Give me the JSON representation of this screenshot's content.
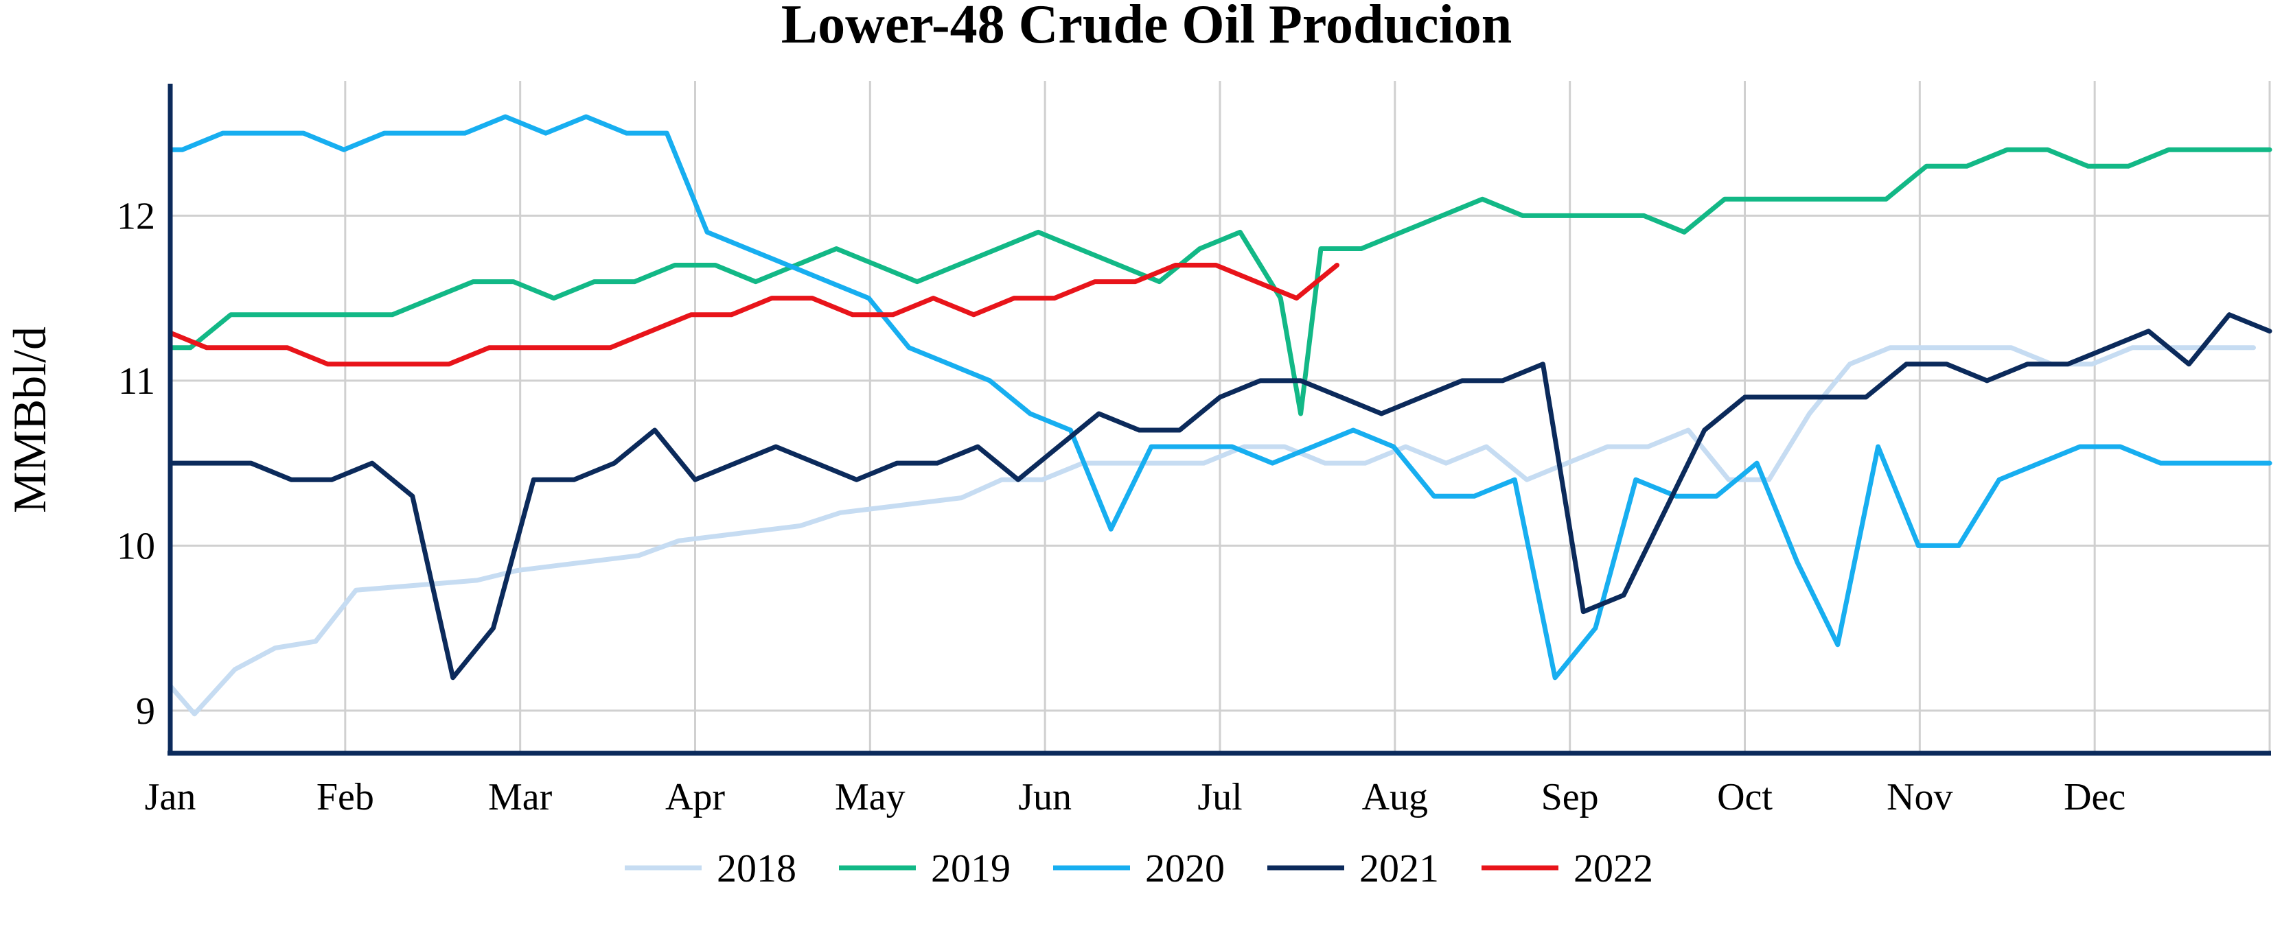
{
  "chart_data": {
    "type": "line",
    "title": "Lower-48 Crude Oil Producion",
    "ylabel": "MMBbl/d",
    "xlabel": "",
    "x_ticks": [
      "Jan",
      "Feb",
      "Mar",
      "Apr",
      "May",
      "Jun",
      "Jul",
      "Aug",
      "Sep",
      "Oct",
      "Nov",
      "Dec"
    ],
    "y_ticks": [
      9,
      10,
      11,
      12
    ],
    "xlim": [
      1,
      53
    ],
    "ylim": [
      8.75,
      12.8
    ],
    "grid": true,
    "legend_position": "bottom",
    "series": [
      {
        "name": "2018",
        "color": "#c6dcf2",
        "x": [
          1,
          1.6,
          2.6,
          3.6,
          4.6,
          5.6,
          6.6,
          7.6,
          8.6,
          9.6,
          10.6,
          11.6,
          12.6,
          13.6,
          14.6,
          15.6,
          16.6,
          17.6,
          18.6,
          19.6,
          20.6,
          21.6,
          22.6,
          23.6,
          24.6,
          25.6,
          26.6,
          27.6,
          28.6,
          29.6,
          30.6,
          31.6,
          32.6,
          33.6,
          34.6,
          35.6,
          36.6,
          37.6,
          38.6,
          39.6,
          40.6,
          41.6,
          42.6,
          43.6,
          44.6,
          45.6,
          46.6,
          47.6,
          48.6,
          49.6,
          50.6,
          51.6,
          52.6
        ],
        "values": [
          9.15,
          8.98,
          9.25,
          9.38,
          9.42,
          9.73,
          9.75,
          9.77,
          9.79,
          9.85,
          9.88,
          9.91,
          9.94,
          10.03,
          10.06,
          10.09,
          10.12,
          10.2,
          10.23,
          10.26,
          10.29,
          10.4,
          10.4,
          10.5,
          10.5,
          10.5,
          10.5,
          10.6,
          10.6,
          10.5,
          10.5,
          10.6,
          10.5,
          10.6,
          10.4,
          10.5,
          10.6,
          10.6,
          10.7,
          10.4,
          10.4,
          10.8,
          11.1,
          11.2,
          11.2,
          11.2,
          11.2,
          11.1,
          11.1,
          11.2,
          11.2,
          11.2,
          11.2
        ]
      },
      {
        "name": "2019",
        "color": "#12b886",
        "x": [
          1,
          1.5,
          2.5,
          3.5,
          4.5,
          5.5,
          6.5,
          7.5,
          8.5,
          9.5,
          10.5,
          11.5,
          12.5,
          13.5,
          14.5,
          15.5,
          16.5,
          17.5,
          18.5,
          19.5,
          20.5,
          21.5,
          22.5,
          23.5,
          24.5,
          25.5,
          26.5,
          27.5,
          28.5,
          29,
          29.5,
          30.5,
          31.5,
          32.5,
          33.5,
          34.5,
          35.5,
          36.5,
          37.5,
          38.5,
          39.5,
          40.5,
          41.5,
          42.5,
          43.5,
          44.5,
          45.5,
          46.5,
          47.5,
          48.5,
          49.5,
          50.5,
          51.5,
          52.5,
          53
        ],
        "values": [
          11.2,
          11.2,
          11.4,
          11.4,
          11.4,
          11.4,
          11.4,
          11.5,
          11.6,
          11.6,
          11.5,
          11.6,
          11.6,
          11.7,
          11.7,
          11.6,
          11.7,
          11.8,
          11.7,
          11.6,
          11.7,
          11.8,
          11.9,
          11.8,
          11.7,
          11.6,
          11.8,
          11.9,
          11.5,
          10.8,
          11.8,
          11.8,
          11.9,
          12.0,
          12.1,
          12.0,
          12.0,
          12.0,
          12.0,
          11.9,
          12.1,
          12.1,
          12.1,
          12.1,
          12.1,
          12.3,
          12.3,
          12.4,
          12.4,
          12.3,
          12.3,
          12.4,
          12.4,
          12.4,
          12.4
        ]
      },
      {
        "name": "2020",
        "color": "#17aef0",
        "x": [
          1,
          1.3,
          2.3,
          3.3,
          4.3,
          5.3,
          6.3,
          7.3,
          8.3,
          9.3,
          10.3,
          11.3,
          12.3,
          13.3,
          14.3,
          15.3,
          16.3,
          17.3,
          18.3,
          19.3,
          20.3,
          21.3,
          22.3,
          23.3,
          24.3,
          25.3,
          26.3,
          27.3,
          28.3,
          29.3,
          30.3,
          31.3,
          32.3,
          33.3,
          34.3,
          35.3,
          36.3,
          37.3,
          38.3,
          39.3,
          40.3,
          41.3,
          42.3,
          43.3,
          44.3,
          45.3,
          46.3,
          47.3,
          48.3,
          49.3,
          50.3,
          51.3,
          52.3,
          53
        ],
        "values": [
          12.4,
          12.4,
          12.5,
          12.5,
          12.5,
          12.4,
          12.5,
          12.5,
          12.5,
          12.6,
          12.5,
          12.6,
          12.5,
          12.5,
          11.9,
          11.8,
          11.7,
          11.6,
          11.5,
          11.2,
          11.1,
          11.0,
          10.8,
          10.7,
          10.1,
          10.6,
          10.6,
          10.6,
          10.5,
          10.6,
          10.7,
          10.6,
          10.3,
          10.3,
          10.4,
          9.2,
          9.5,
          10.4,
          10.3,
          10.3,
          10.5,
          9.9,
          9.4,
          10.6,
          10.0,
          10.0,
          10.4,
          10.5,
          10.6,
          10.6,
          10.5,
          10.5,
          10.5,
          10.5
        ]
      },
      {
        "name": "2021",
        "color": "#0b2a5b",
        "x": [
          1,
          2,
          3,
          4,
          5,
          6,
          7,
          8,
          9,
          10,
          11,
          12,
          13,
          14,
          15,
          16,
          17,
          18,
          19,
          20,
          21,
          22,
          23,
          24,
          25,
          26,
          27,
          28,
          29,
          30,
          31,
          32,
          33,
          34,
          35,
          36,
          37,
          38,
          39,
          40,
          41,
          42,
          43,
          44,
          45,
          46,
          47,
          48,
          49,
          50,
          51,
          52,
          53
        ],
        "values": [
          10.5,
          10.5,
          10.5,
          10.4,
          10.4,
          10.5,
          10.3,
          9.2,
          9.5,
          10.4,
          10.4,
          10.5,
          10.7,
          10.4,
          10.5,
          10.6,
          10.5,
          10.4,
          10.5,
          10.5,
          10.6,
          10.4,
          10.6,
          10.8,
          10.7,
          10.7,
          10.9,
          11.0,
          11.0,
          10.9,
          10.8,
          10.9,
          11.0,
          11.0,
          11.1,
          9.6,
          9.7,
          10.2,
          10.7,
          10.9,
          10.9,
          10.9,
          10.9,
          11.1,
          11.1,
          11.0,
          11.1,
          11.1,
          11.2,
          11.3,
          11.1,
          11.4,
          11.3
        ]
      },
      {
        "name": "2022",
        "color": "#e8141a",
        "x": [
          1,
          1.9,
          2.9,
          3.9,
          4.9,
          5.9,
          6.9,
          7.9,
          8.9,
          9.9,
          10.9,
          11.9,
          12.9,
          13.9,
          14.9,
          15.9,
          16.9,
          17.9,
          18.9,
          19.9,
          20.9,
          21.9,
          22.9,
          23.9,
          24.9,
          25.9,
          26.9,
          27.9,
          28.9,
          29.9
        ],
        "values": [
          11.29,
          11.2,
          11.2,
          11.2,
          11.1,
          11.1,
          11.1,
          11.1,
          11.2,
          11.2,
          11.2,
          11.2,
          11.3,
          11.4,
          11.4,
          11.5,
          11.5,
          11.4,
          11.4,
          11.5,
          11.4,
          11.5,
          11.5,
          11.6,
          11.6,
          11.7,
          11.7,
          11.6,
          11.5,
          11.7
        ]
      }
    ]
  }
}
